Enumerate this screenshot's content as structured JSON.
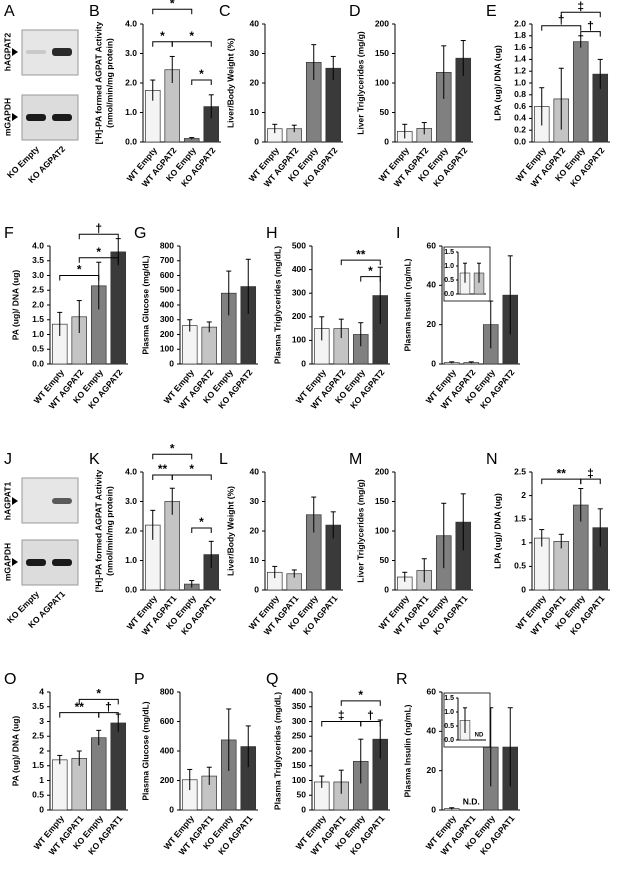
{
  "bar_colors": [
    "#f4f4f4",
    "#c4c4c4",
    "#808080",
    "#3a3a3a"
  ],
  "blots": [
    {
      "panel": "A",
      "bands": [
        "hAGPAT2",
        "mGAPDH"
      ],
      "lanes": [
        "KO Empty",
        "KO AGPAT2"
      ]
    },
    {
      "panel": "J",
      "bands": [
        "hAGPAT1",
        "mGAPDH"
      ],
      "lanes": [
        "KO Empty",
        "KO AGPAT1"
      ]
    }
  ],
  "chart_data": [
    {
      "type": "bar",
      "panel": "B",
      "ylabel": [
        "[³H]-PA formed AGPAT Activity",
        "(nmol/min/mg protein)"
      ],
      "categories": [
        "WT Empty",
        "WT AGPAT2",
        "KO Empty",
        "KO AGPAT2"
      ],
      "values": [
        1.75,
        2.45,
        0.12,
        1.2
      ],
      "errors": [
        0.35,
        0.45,
        0.03,
        0.4
      ],
      "ylim": [
        0,
        4
      ],
      "yticks": [
        {
          "value": 0,
          "label": "0.0"
        },
        {
          "value": 1,
          "label": "1.0"
        },
        {
          "value": 2,
          "label": "2.0"
        },
        {
          "value": 3,
          "label": "3.0"
        },
        {
          "value": 4,
          "label": "4.0"
        }
      ],
      "brackets": [
        {
          "from": 0,
          "to": 2,
          "y": 4.5,
          "label": "*"
        },
        {
          "from": 0,
          "to": 1,
          "y": 3.4,
          "label": "*"
        },
        {
          "from": 1,
          "to": 3,
          "y": 3.4,
          "label": "*"
        },
        {
          "from": 2,
          "to": 3,
          "y": 2.1,
          "label": "*"
        }
      ]
    },
    {
      "type": "bar",
      "panel": "C",
      "ylabel": "Liver/Body Weight (%)",
      "categories": [
        "WT Empty",
        "WT AGPAT2",
        "KO Empty",
        "KO AGPAT2"
      ],
      "values": [
        4.5,
        4.5,
        27,
        25
      ],
      "errors": [
        1.5,
        1.2,
        6,
        4
      ],
      "ylim": [
        0,
        40
      ],
      "yticks": [
        0,
        10,
        20,
        30,
        40
      ]
    },
    {
      "type": "bar",
      "panel": "D",
      "ylabel": "Liver Triglycerides (mg/g)",
      "categories": [
        "WT Empty",
        "WT AGPAT2",
        "KO Empty",
        "KO AGPAT2"
      ],
      "values": [
        18,
        23,
        118,
        142
      ],
      "errors": [
        12,
        10,
        45,
        30
      ],
      "ylim": [
        0,
        200
      ],
      "yticks": [
        0,
        50,
        100,
        150,
        200
      ]
    },
    {
      "type": "bar",
      "panel": "E",
      "ylabel": "LPA (ug)/ DNA (ug)",
      "categories": [
        "WT Empty",
        "WT AGPAT2",
        "KO Empty",
        "KO AGPAT2"
      ],
      "values": [
        0.6,
        0.73,
        1.7,
        1.15
      ],
      "errors": [
        0.32,
        0.52,
        0.1,
        0.25
      ],
      "ylim": [
        0,
        2
      ],
      "yticks": [
        {
          "value": 0,
          "label": "0.0"
        },
        0.2,
        0.4,
        0.6,
        0.8,
        {
          "value": 1,
          "label": "1.0"
        },
        1.2,
        1.4,
        1.6,
        1.8,
        {
          "value": 2,
          "label": "2.0"
        }
      ],
      "brackets": [
        {
          "from": 1,
          "to": 3,
          "y": 2.2,
          "label": "‡"
        },
        {
          "from": 0,
          "to": 2,
          "y": 1.97,
          "label": "†"
        },
        {
          "from": 2,
          "to": 3,
          "y": 1.87,
          "label": "†"
        }
      ]
    },
    {
      "type": "bar",
      "panel": "F",
      "ylabel": "PA (ug)/ DNA (ug)",
      "categories": [
        "WT Empty",
        "WT AGPAT2",
        "KO Empty",
        "KO AGPAT2"
      ],
      "values": [
        1.35,
        1.6,
        2.65,
        3.8
      ],
      "errors": [
        0.4,
        0.55,
        0.8,
        0.45
      ],
      "ylim": [
        0,
        4
      ],
      "yticks": [
        {
          "value": 0,
          "label": "0.0"
        },
        0.5,
        {
          "value": 1,
          "label": "1.0"
        },
        1.5,
        {
          "value": 2,
          "label": "2.0"
        },
        2.5,
        {
          "value": 3,
          "label": "3.0"
        },
        3.5,
        {
          "value": 4,
          "label": "4.0"
        }
      ],
      "brackets": [
        {
          "from": 1,
          "to": 3,
          "y": 4.4,
          "label": "†"
        },
        {
          "from": 1,
          "to": 3,
          "y": 3.6,
          "label": "*"
        },
        {
          "from": 0,
          "to": 2,
          "y": 3.0,
          "label": "*"
        }
      ]
    },
    {
      "type": "bar",
      "panel": "G",
      "ylabel": "Plasma Glucose (mg/dL)",
      "categories": [
        "WT Empty",
        "WT AGPAT2",
        "KO Empty",
        "KO AGPAT2"
      ],
      "values": [
        260,
        250,
        480,
        525
      ],
      "errors": [
        40,
        35,
        150,
        185
      ],
      "ylim": [
        0,
        800
      ],
      "yticks": [
        0,
        100,
        200,
        300,
        400,
        500,
        600,
        700,
        800
      ]
    },
    {
      "type": "bar",
      "panel": "H",
      "ylabel": "Plasma Triglycerides (mg/dL)",
      "categories": [
        "WT Empty",
        "WT AGPAT2",
        "KO Empty",
        "KO AGPAT2"
      ],
      "values": [
        150,
        150,
        125,
        290
      ],
      "errors": [
        50,
        40,
        50,
        120
      ],
      "ylim": [
        0,
        500
      ],
      "yticks": [
        0,
        100,
        200,
        300,
        400,
        500
      ],
      "brackets": [
        {
          "from": 1,
          "to": 3,
          "y": 440,
          "label": "**"
        },
        {
          "from": 2,
          "to": 3,
          "y": 370,
          "label": "*"
        }
      ]
    },
    {
      "type": "bar",
      "panel": "I",
      "ylabel": "Plasma Insulin (ng/mL)",
      "categories": [
        "WT Empty",
        "WT AGPAT2",
        "KO Empty",
        "KO AGPAT2"
      ],
      "values": [
        0.75,
        0.75,
        20,
        35
      ],
      "errors": [
        0.35,
        0.35,
        12,
        20
      ],
      "ylim": [
        0,
        60
      ],
      "yticks": [
        0,
        20,
        40,
        60
      ],
      "inset": {
        "ylim": [
          0,
          1.5
        ],
        "yticks": [
          {
            "value": 0,
            "label": "0.0"
          },
          0.5,
          {
            "value": 1,
            "label": "1.0"
          },
          1.5
        ]
      }
    },
    {
      "type": "bar",
      "panel": "K",
      "ylabel": [
        "[³H]-PA formed AGPAT Activity",
        "(nmol/min/mg protein)"
      ],
      "categories": [
        "WT Empty",
        "WT AGPAT1",
        "KO Empty",
        "KO AGPAT1"
      ],
      "values": [
        2.2,
        3.0,
        0.2,
        1.2
      ],
      "errors": [
        0.5,
        0.45,
        0.12,
        0.45
      ],
      "ylim": [
        0,
        4
      ],
      "yticks": [
        {
          "value": 0,
          "label": "0.0"
        },
        {
          "value": 1,
          "label": "1.0"
        },
        {
          "value": 2,
          "label": "2.0"
        },
        {
          "value": 3,
          "label": "3.0"
        },
        {
          "value": 4,
          "label": "4.0"
        }
      ],
      "brackets": [
        {
          "from": 0,
          "to": 2,
          "y": 4.6,
          "label": "*"
        },
        {
          "from": 0,
          "to": 1,
          "y": 3.9,
          "label": "**"
        },
        {
          "from": 1,
          "to": 3,
          "y": 3.9,
          "label": "*"
        },
        {
          "from": 2,
          "to": 3,
          "y": 2.1,
          "label": "*"
        }
      ]
    },
    {
      "type": "bar",
      "panel": "L",
      "ylabel": "Liver/Body Weight (%)",
      "categories": [
        "WT Empty",
        "WT AGPAT1",
        "KO Empty",
        "KO AGPAT1"
      ],
      "values": [
        6,
        5.5,
        25.5,
        22
      ],
      "errors": [
        2,
        1.3,
        6,
        4.5
      ],
      "ylim": [
        0,
        40
      ],
      "yticks": [
        0,
        10,
        20,
        30,
        40
      ]
    },
    {
      "type": "bar",
      "panel": "M",
      "ylabel": "Liver Triglycerides (mg/g)",
      "categories": [
        "WT Empty",
        "WT AGPAT1",
        "KO Empty",
        "KO AGPAT1"
      ],
      "values": [
        22,
        33,
        92,
        115
      ],
      "errors": [
        8,
        20,
        55,
        48
      ],
      "ylim": [
        0,
        200
      ],
      "yticks": [
        0,
        50,
        100,
        150,
        200
      ]
    },
    {
      "type": "bar",
      "panel": "N",
      "ylabel": "LPA (ug)/ DNA (ug)",
      "categories": [
        "WT Empty",
        "WT AGPAT1",
        "KO Empty",
        "KO AGPAT1"
      ],
      "values": [
        1.1,
        1.03,
        1.8,
        1.32
      ],
      "errors": [
        0.18,
        0.15,
        0.35,
        0.4
      ],
      "ylim": [
        0,
        2.5
      ],
      "yticks": [
        0,
        0.5,
        1,
        1.5,
        2,
        2.5
      ],
      "brackets": [
        {
          "from": 0,
          "to": 2,
          "y": 2.35,
          "label": "**"
        },
        {
          "from": 2,
          "to": 3,
          "y": 2.35,
          "label": "‡"
        }
      ]
    },
    {
      "type": "bar",
      "panel": "O",
      "ylabel": "PA (ug)/ DNA (ug)",
      "categories": [
        "WT Empty",
        "WT AGPAT1",
        "KO Empty",
        "KO AGPAT1"
      ],
      "values": [
        1.7,
        1.75,
        2.45,
        2.95
      ],
      "errors": [
        0.15,
        0.25,
        0.25,
        0.3
      ],
      "ylim": [
        0,
        4
      ],
      "yticks": [
        0,
        0.5,
        1,
        1.5,
        2,
        2.5,
        3,
        3.5,
        4
      ],
      "brackets": [
        {
          "from": 1,
          "to": 3,
          "y": 3.75,
          "label": "*"
        },
        {
          "from": 0,
          "to": 2,
          "y": 3.3,
          "label": "**"
        },
        {
          "from": 2,
          "to": 3,
          "y": 3.3,
          "label": "†"
        }
      ]
    },
    {
      "type": "bar",
      "panel": "P",
      "ylabel": "Plasma Glucose (mg/dL)",
      "categories": [
        "WT Empty",
        "WT AGPAT1",
        "KO Empty",
        "KO AGPAT1"
      ],
      "values": [
        205,
        230,
        475,
        430
      ],
      "errors": [
        70,
        60,
        210,
        140
      ],
      "ylim": [
        0,
        800
      ],
      "yticks": [
        0,
        200,
        400,
        600,
        800
      ]
    },
    {
      "type": "bar",
      "panel": "Q",
      "ylabel": "Plasma Triglycerides (mg/dL)",
      "categories": [
        "WT Empty",
        "WT AGPAT1",
        "KO Empty",
        "KO AGPAT1"
      ],
      "values": [
        95,
        95,
        165,
        240
      ],
      "errors": [
        20,
        40,
        75,
        65
      ],
      "ylim": [
        0,
        400
      ],
      "yticks": [
        0,
        50,
        100,
        150,
        200,
        250,
        300,
        350,
        400
      ],
      "brackets": [
        {
          "from": 1,
          "to": 3,
          "y": 370,
          "label": "*"
        },
        {
          "from": 0,
          "to": 2,
          "y": 300,
          "label": "‡"
        },
        {
          "from": 2,
          "to": 3,
          "y": 300,
          "label": "†"
        }
      ]
    },
    {
      "type": "bar",
      "panel": "R",
      "ylabel": "Plasma Insulin (ng/mL)",
      "categories": [
        "WT Empty",
        "WT AGPAT1",
        "KO Empty",
        "KO AGPAT1"
      ],
      "values": [
        0.7,
        null,
        32,
        32
      ],
      "errors": [
        0.45,
        null,
        20,
        20
      ],
      "ylim": [
        0,
        60
      ],
      "yticks": [
        0,
        20,
        40,
        60
      ],
      "nd_label": "N.D.",
      "inset": {
        "ylim": [
          0,
          1.5
        ],
        "yticks": [
          {
            "value": 0,
            "label": "0.0"
          },
          0.5,
          {
            "value": 1,
            "label": "1.0"
          },
          1.5
        ],
        "nd_label": "ND"
      }
    }
  ]
}
